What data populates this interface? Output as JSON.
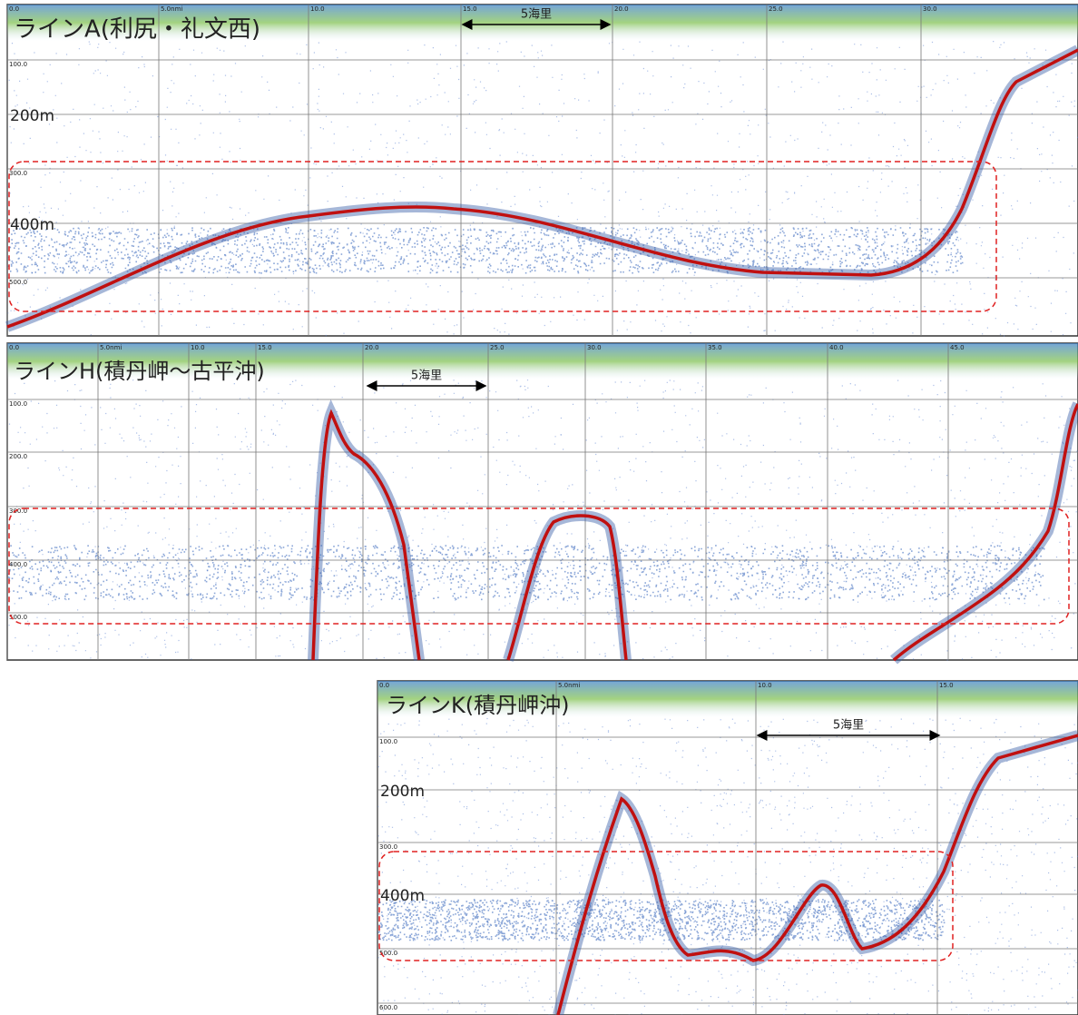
{
  "panels": [
    {
      "title": "ラインA(利尻・礼文西)",
      "distance_labels": [
        "0.0",
        "5.0nmi",
        "10.0",
        "15.0",
        "20.0",
        "25.0",
        "30.0"
      ],
      "depth_labels": [
        "100.0",
        "200m",
        "300.0",
        "400m",
        "500.0"
      ],
      "scale_label": "5海里"
    },
    {
      "title": "ラインH(積丹岬～古平沖)",
      "distance_labels": [
        "0.0",
        "5.0nmi",
        "10.0",
        "15.0",
        "20.0",
        "25.0",
        "30.0",
        "35.0",
        "40.0",
        "45.0"
      ],
      "depth_labels": [
        "100.0",
        "200.0",
        "300.0",
        "400.0",
        "500.0"
      ],
      "scale_label": "5海里"
    },
    {
      "title": "ラインK(積丹岬沖)",
      "distance_labels": [
        "0.0",
        "5.0nmi",
        "10.0",
        "15.0"
      ],
      "depth_labels": [
        "100.0",
        "200m",
        "300.0",
        "400m",
        "500.0",
        "600.0"
      ],
      "scale_label": "5海里"
    }
  ]
}
